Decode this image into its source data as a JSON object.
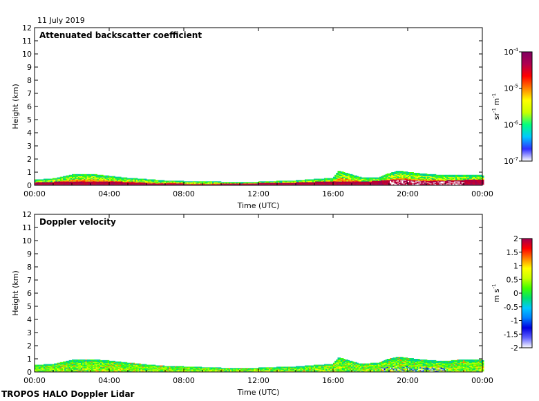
{
  "date": "11 July 2019",
  "footer": "TROPOS HALO Doppler Lidar",
  "chart_data": [
    {
      "type": "heatmap",
      "title": "Attenuated backscatter coefficient",
      "xlabel": "Time (UTC)",
      "ylabel": "Height (km)",
      "xticks": [
        "00:00",
        "04:00",
        "08:00",
        "12:00",
        "16:00",
        "20:00",
        "00:00"
      ],
      "xlim_hours": [
        0,
        24
      ],
      "ylim_km": [
        0,
        12
      ],
      "yticks": [
        0,
        1,
        2,
        3,
        4,
        5,
        6,
        7,
        8,
        9,
        10,
        11,
        12
      ],
      "colorbar": {
        "scale": "log",
        "ticks": [
          {
            "base": "10",
            "exp": "-4",
            "value": 0.0001
          },
          {
            "base": "10",
            "exp": "-5",
            "value": 1e-05
          },
          {
            "base": "10",
            "exp": "-6",
            "value": 1e-06
          },
          {
            "base": "10",
            "exp": "-7",
            "value": 1e-07
          }
        ],
        "range": [
          1e-07,
          0.0001
        ],
        "units": {
          "a": "sr",
          "ae": "-1",
          "b": " m",
          "be": "-1"
        },
        "colors": [
          "#ffffff",
          "#3030ff",
          "#00c8ff",
          "#00ff80",
          "#c8ff00",
          "#ffff00",
          "#ff8000",
          "#ff0000",
          "#b00050",
          "#800060"
        ]
      },
      "layer_top_km": [
        [
          0.0,
          0.4
        ],
        [
          1.0,
          0.5
        ],
        [
          2.0,
          0.8
        ],
        [
          3.0,
          0.85
        ],
        [
          4.0,
          0.7
        ],
        [
          5.0,
          0.55
        ],
        [
          6.0,
          0.45
        ],
        [
          7.0,
          0.35
        ],
        [
          8.0,
          0.3
        ],
        [
          9.0,
          0.3
        ],
        [
          10.0,
          0.25
        ],
        [
          11.0,
          0.2
        ],
        [
          12.0,
          0.25
        ],
        [
          13.0,
          0.3
        ],
        [
          14.0,
          0.35
        ],
        [
          15.0,
          0.45
        ],
        [
          16.0,
          0.55
        ],
        [
          16.3,
          1.1
        ],
        [
          16.8,
          0.9
        ],
        [
          17.5,
          0.6
        ],
        [
          18.5,
          0.6
        ],
        [
          19.0,
          0.9
        ],
        [
          19.5,
          1.1
        ],
        [
          20.0,
          1.0
        ],
        [
          21.0,
          0.85
        ],
        [
          22.0,
          0.75
        ],
        [
          23.0,
          0.8
        ],
        [
          24.0,
          0.75
        ]
      ],
      "strong_layer_km": [
        [
          0.0,
          0.2
        ],
        [
          2.0,
          0.3
        ],
        [
          4.0,
          0.3
        ],
        [
          6.0,
          0.15
        ],
        [
          8.0,
          0.1
        ],
        [
          10.0,
          0.1
        ],
        [
          12.0,
          0.15
        ],
        [
          14.0,
          0.2
        ],
        [
          16.0,
          0.3
        ],
        [
          18.0,
          0.3
        ],
        [
          19.5,
          0.45
        ],
        [
          20.5,
          0.35
        ],
        [
          22.0,
          0.35
        ],
        [
          24.0,
          0.45
        ]
      ]
    },
    {
      "type": "heatmap",
      "title": "Doppler velocity",
      "xlabel": "Time (UTC)",
      "ylabel": "Height (km)",
      "xticks": [
        "00:00",
        "04:00",
        "08:00",
        "12:00",
        "16:00",
        "20:00",
        "00:00"
      ],
      "xlim_hours": [
        0,
        24
      ],
      "ylim_km": [
        0,
        12
      ],
      "yticks": [
        0,
        1,
        2,
        3,
        4,
        5,
        6,
        7,
        8,
        9,
        10,
        11,
        12
      ],
      "colorbar": {
        "scale": "linear",
        "ticks": [
          "2",
          "1.5",
          "1",
          "0.5",
          "0",
          "-0.5",
          "-1",
          "-1.5",
          "-2"
        ],
        "range": [
          -2,
          2
        ],
        "units": {
          "a": "m",
          "ae": "",
          "b": " s",
          "be": "-1"
        },
        "colors": [
          "#ffffff",
          "#6060ff",
          "#0000e0",
          "#0080ff",
          "#00c8ff",
          "#00e070",
          "#40ff00",
          "#c8ff00",
          "#ffff00",
          "#ff8000",
          "#ff0000",
          "#a00050"
        ]
      },
      "layer_top_km": [
        [
          0.0,
          0.5
        ],
        [
          1.0,
          0.6
        ],
        [
          2.0,
          0.9
        ],
        [
          3.0,
          0.95
        ],
        [
          4.0,
          0.85
        ],
        [
          5.0,
          0.7
        ],
        [
          6.0,
          0.55
        ],
        [
          7.0,
          0.45
        ],
        [
          8.0,
          0.4
        ],
        [
          9.0,
          0.35
        ],
        [
          10.0,
          0.3
        ],
        [
          11.0,
          0.25
        ],
        [
          12.0,
          0.3
        ],
        [
          13.0,
          0.35
        ],
        [
          14.0,
          0.4
        ],
        [
          15.0,
          0.5
        ],
        [
          16.0,
          0.6
        ],
        [
          16.3,
          1.1
        ],
        [
          16.8,
          0.9
        ],
        [
          17.5,
          0.6
        ],
        [
          18.5,
          0.7
        ],
        [
          19.0,
          1.0
        ],
        [
          19.5,
          1.15
        ],
        [
          20.0,
          1.05
        ],
        [
          21.0,
          0.9
        ],
        [
          22.0,
          0.8
        ],
        [
          23.0,
          0.95
        ],
        [
          24.0,
          0.9
        ]
      ]
    }
  ]
}
